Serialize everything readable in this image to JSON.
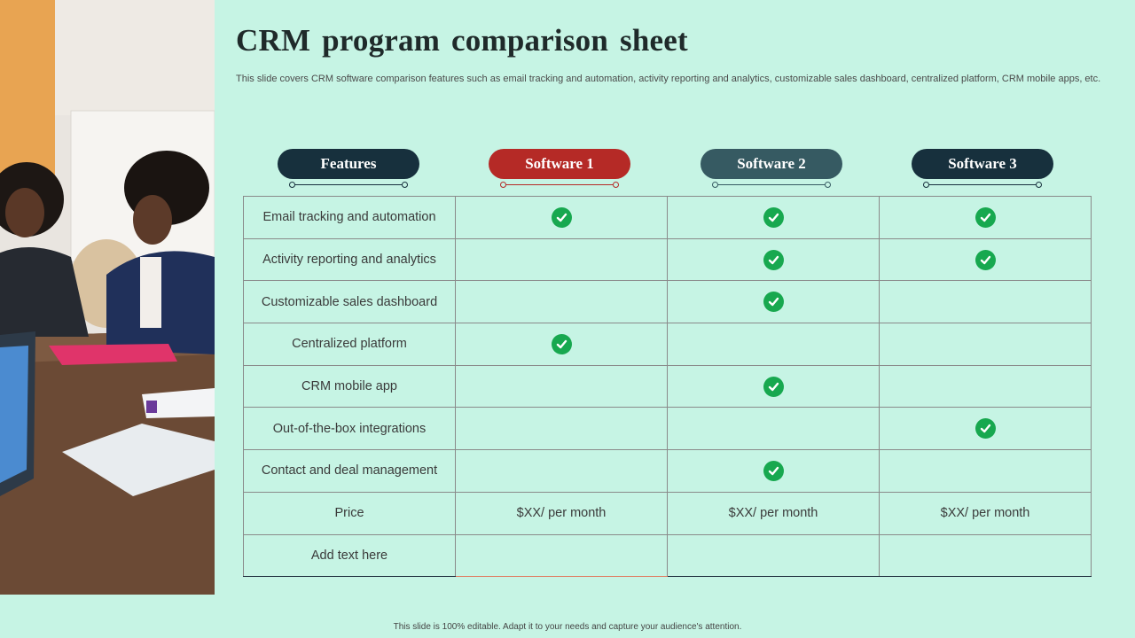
{
  "slide": {
    "title": "CRM program comparison sheet",
    "subtitle": "This slide covers CRM software comparison features such as email tracking and automation, activity reporting and analytics, customizable sales dashboard, centralized platform, CRM mobile apps, etc.",
    "footer": "This slide is 100% editable. Adapt it to your needs and capture your audience's attention."
  },
  "table": {
    "headers": [
      {
        "label": "Features",
        "color": "#17303d"
      },
      {
        "label": "Software 1",
        "color": "#b52a26"
      },
      {
        "label": "Software 2",
        "color": "#365a62"
      },
      {
        "label": "Software 3",
        "color": "#17303d"
      }
    ],
    "rows": [
      {
        "feature": "Email tracking and automation",
        "cells": [
          "check",
          "check",
          "check"
        ]
      },
      {
        "feature": "Activity reporting and analytics",
        "cells": [
          "",
          "check",
          "check"
        ]
      },
      {
        "feature": "Customizable sales dashboard",
        "cells": [
          "",
          "check",
          ""
        ]
      },
      {
        "feature": "Centralized platform",
        "cells": [
          "check",
          "",
          ""
        ]
      },
      {
        "feature": "CRM mobile app",
        "cells": [
          "",
          "check",
          ""
        ]
      },
      {
        "feature": "Out-of-the-box integrations",
        "cells": [
          "",
          "",
          "check"
        ]
      },
      {
        "feature": "Contact and deal management",
        "cells": [
          "",
          "check",
          ""
        ]
      },
      {
        "feature": "Price",
        "cells": [
          "$XX/ per month",
          "$XX/ per month",
          "$XX/ per month"
        ]
      },
      {
        "feature": "Add text here",
        "cells": [
          "",
          "",
          ""
        ]
      }
    ]
  },
  "icons": {
    "check": "check-circle-icon",
    "check_color": "#17a84f"
  }
}
